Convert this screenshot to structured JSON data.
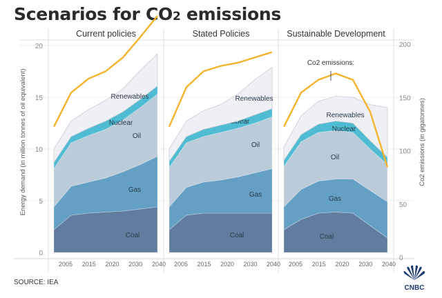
{
  "title_main": "Scenarios for CO",
  "title_sub": "2",
  "title_end": " emissions",
  "source": "SOURCE: IEA",
  "logo": {
    "text": "CNBC",
    "icon": "peacock-icon"
  },
  "colors": {
    "coal": "#607d9f",
    "gas": "#64a0c4",
    "oil": "#bccbd9",
    "nuclear": "#4fbcd3",
    "renewables": "#eef0f5",
    "co2_line": "#f5b22b"
  },
  "chart_data": {
    "type": "area",
    "title": "Scenarios for CO2 emissions",
    "ylabel_left": "Energy demand (in million tonnes of oil equivalent)",
    "ylabel_right": "Co2 emissions (in gigatonnes)",
    "ylim_left": [
      0,
      20
    ],
    "ylim_right": [
      0,
      200
    ],
    "yticks_left": [
      0,
      5,
      10,
      15,
      20
    ],
    "yticks_right": [
      0,
      50,
      100,
      150,
      200
    ],
    "xticks": [
      "2005",
      "2015",
      "2020",
      "2030",
      "2040"
    ],
    "grid": true,
    "stack_order": [
      "Coal",
      "Gas",
      "Oil",
      "Nuclear",
      "Renewables"
    ],
    "annotation": "Co2 emissions:",
    "panels": [
      {
        "name": "Current policies",
        "x": [
          0,
          1,
          2,
          3,
          4,
          5,
          6
        ],
        "series": [
          {
            "name": "Coal",
            "values": [
              2.2,
              3.6,
              3.8,
              3.9,
              4.0,
              4.2,
              4.4
            ]
          },
          {
            "name": "Gas",
            "values": [
              2.2,
              2.8,
              3.0,
              3.3,
              3.8,
              4.3,
              4.9
            ]
          },
          {
            "name": "Oil",
            "values": [
              3.7,
              4.2,
              4.5,
              4.7,
              5.0,
              5.5,
              6.0
            ]
          },
          {
            "name": "Nuclear",
            "values": [
              0.6,
              0.6,
              0.7,
              0.8,
              0.8,
              0.8,
              0.8
            ]
          },
          {
            "name": "Renewables",
            "values": [
              1.3,
              1.5,
              1.8,
              2.0,
              2.2,
              2.8,
              3.1
            ]
          }
        ],
        "co2": [
          118,
          150,
          163,
          170,
          183,
          202,
          222
        ]
      },
      {
        "name": "Stated Policies",
        "x": [
          0,
          1,
          2,
          3,
          4,
          5,
          6
        ],
        "series": [
          {
            "name": "Coal",
            "values": [
              2.2,
              3.6,
              3.8,
              3.8,
              3.8,
              3.8,
              3.8
            ]
          },
          {
            "name": "Gas",
            "values": [
              2.2,
              2.7,
              3.0,
              3.2,
              3.5,
              3.9,
              4.3
            ]
          },
          {
            "name": "Oil",
            "values": [
              3.8,
              4.3,
              4.4,
              4.6,
              4.7,
              4.8,
              5.0
            ]
          },
          {
            "name": "Nuclear",
            "values": [
              0.6,
              0.6,
              0.7,
              0.7,
              0.7,
              0.8,
              0.8
            ]
          },
          {
            "name": "Renewables",
            "values": [
              1.2,
              1.5,
              1.8,
              2.0,
              2.6,
              3.4,
              4.0
            ]
          }
        ],
        "co2": [
          118,
          155,
          170,
          175,
          178,
          183,
          188
        ]
      },
      {
        "name": "Sustainable Development",
        "x": [
          0,
          1,
          2,
          3,
          4,
          5,
          6
        ],
        "series": [
          {
            "name": "Coal",
            "values": [
              2.2,
              3.2,
              3.8,
              3.9,
              3.8,
              2.6,
              1.4
            ]
          },
          {
            "name": "Gas",
            "values": [
              2.2,
              2.9,
              3.1,
              3.2,
              3.3,
              3.4,
              3.5
            ]
          },
          {
            "name": "Oil",
            "values": [
              3.9,
              4.6,
              4.7,
              4.7,
              4.5,
              4.0,
              3.6
            ]
          },
          {
            "name": "Nuclear",
            "values": [
              0.6,
              0.7,
              0.8,
              0.9,
              0.9,
              0.8,
              0.7
            ]
          },
          {
            "name": "Renewables",
            "values": [
              1.3,
              1.8,
              2.2,
              2.4,
              2.5,
              3.5,
              4.8
            ]
          }
        ],
        "co2": [
          118,
          150,
          162,
          168,
          162,
          132,
          80
        ]
      }
    ]
  }
}
